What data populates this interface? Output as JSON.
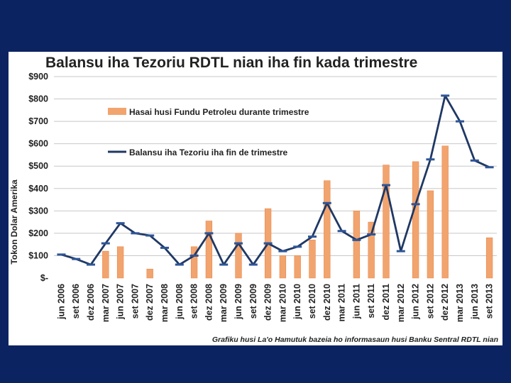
{
  "chart_data": {
    "type": "bar",
    "title": "Balansu iha Tezoriu RDTL nian iha fin kada trimestre",
    "ylabel": "Tokon Dolar Amerika",
    "xlabel": "",
    "ylim": [
      0,
      900
    ],
    "yticks": [
      {
        "value": 900,
        "label": "$900"
      },
      {
        "value": 800,
        "label": "$800"
      },
      {
        "value": 700,
        "label": "$700"
      },
      {
        "value": 600,
        "label": "$600"
      },
      {
        "value": 500,
        "label": "$500"
      },
      {
        "value": 400,
        "label": "$400"
      },
      {
        "value": 300,
        "label": "$300"
      },
      {
        "value": 200,
        "label": "$200"
      },
      {
        "value": 100,
        "label": "$100"
      },
      {
        "value": 0,
        "label": "$-"
      }
    ],
    "grid": true,
    "legend_position": "top-left",
    "categories": [
      "jun 2006",
      "set 2006",
      "dez 2006",
      "mar 2007",
      "jun 2007",
      "set 2007",
      "dez 2007",
      "mar 2008",
      "jun 2008",
      "set 2008",
      "dez 2008",
      "mar 2009",
      "jun 2009",
      "set 2009",
      "dez 2009",
      "mar 2010",
      "jun 2010",
      "set 2010",
      "dez 2010",
      "mar 2011",
      "jun 2011",
      "set 2011",
      "dez 2011",
      "mar 2012",
      "jun 2012",
      "set 2012",
      "dez 2012",
      "mar 2013",
      "jun 2013",
      "set 2013"
    ],
    "series": [
      {
        "name": "Hasai husi Fundu Petroleu durante trimestre",
        "kind": "bar",
        "color": "#f2a46f",
        "values": [
          0,
          0,
          0,
          120,
          140,
          0,
          40,
          0,
          0,
          140,
          255,
          0,
          200,
          0,
          310,
          100,
          100,
          170,
          435,
          0,
          300,
          250,
          505,
          0,
          520,
          390,
          590,
          0,
          0,
          180
        ]
      },
      {
        "name": "Balansu iha Tezoriu iha fin de trimestre",
        "kind": "line",
        "color": "#1f3864",
        "values": [
          105,
          85,
          60,
          155,
          245,
          200,
          190,
          135,
          60,
          100,
          200,
          60,
          155,
          60,
          155,
          120,
          140,
          185,
          335,
          210,
          170,
          195,
          415,
          120,
          330,
          530,
          815,
          700,
          525,
          495
        ]
      }
    ],
    "source_note": "Grafiku husi La'o Hamutuk bazeia ho informasaun husi Banku Sentral RDTL nian"
  }
}
